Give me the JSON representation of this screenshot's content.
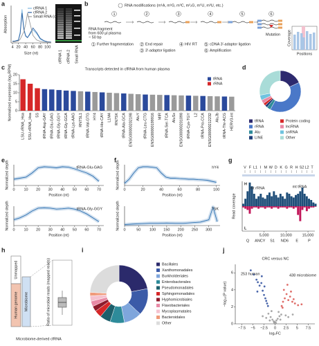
{
  "panels": [
    "a",
    "b",
    "c",
    "d",
    "e",
    "f",
    "g",
    "h",
    "i",
    "j"
  ],
  "gel": {
    "lanes": [
      "cfRNA 1",
      "cfRNA 2",
      "Small RNA"
    ]
  },
  "diagram": {
    "b": {
      "title": "RNA modifications (m¹A, m¹G, m³C, m²₂G, m⁵U, m³U, etc.)",
      "fragment": [
        "RNA fragment",
        "from 600 µl plasma",
        "~ 50 bp"
      ],
      "steps": [
        {
          "num": "1",
          "label": "Further fragmentation"
        },
        {
          "num": "2",
          "label": "End repair"
        },
        {
          "num": "3",
          "label": "3′-adaptor ligation"
        },
        {
          "num": "4",
          "label": "HIV RT"
        },
        {
          "num": "5",
          "label": "cDNA 3′-adaptor ligation"
        },
        {
          "num": "6",
          "label": "Amplification"
        }
      ],
      "mutation": "Mutation",
      "coverage": "Coverage",
      "positions": "Positions"
    },
    "h": {
      "unmapped": "Unmapped",
      "human": "Human genome",
      "microbiome": "Microbiome",
      "ratio": "Ratio of microbial reads (mapped reads)",
      "caption": "Microbiome-derived cfRNA"
    }
  },
  "chart_data": [
    {
      "type": "line",
      "xlabel": "Size (nt)",
      "ylabel": "Absorption",
      "x": [
        4,
        10,
        20,
        25,
        30,
        35,
        40,
        45,
        50,
        60,
        70,
        80,
        90,
        100,
        110
      ],
      "xlim": [
        0,
        110
      ],
      "xticks": [
        4,
        20,
        40,
        60,
        80,
        100
      ],
      "ylim": [
        0,
        100
      ],
      "legend": "upper right",
      "series": [
        {
          "name": "cfRNA 1",
          "color": "#7fb8e0",
          "values": [
            5,
            5,
            8,
            30,
            90,
            40,
            20,
            15,
            20,
            35,
            25,
            10,
            5,
            3,
            2
          ]
        },
        {
          "name": "cfRNA 2",
          "color": "#2c5fa0",
          "values": [
            4,
            5,
            7,
            25,
            80,
            35,
            18,
            14,
            22,
            40,
            28,
            12,
            6,
            3,
            2
          ]
        },
        {
          "name": "Small RNA (cytoplasm)",
          "color": "#9a9a9a",
          "values": [
            3,
            3,
            5,
            10,
            20,
            30,
            50,
            80,
            60,
            20,
            8,
            4,
            2,
            2,
            1
          ]
        }
      ]
    },
    {
      "type": "bar",
      "title": "Transcripts detected in cfRNA from human plasma",
      "ylabel": "Normalized expression (log₂RPM)",
      "categories": [
        "LSU-rRNA_Hsa",
        "SSU-rRNA_Hsa",
        "5S",
        "tRNA-Asp-GAY",
        "tRNA-Glu-GAG",
        "tRNA-Gly-GGY",
        "tRNA-Gly-GGA",
        "tRNA-Lys-AAG",
        "RN7SL1",
        "tRNA-Val-GTG",
        "HY4",
        "tRNA-His-CAY",
        "L1M4",
        "RN7SK",
        "tRNA-Ala-GCA",
        "ENSG00000202198",
        "AluY",
        "tRNA-Leu-CTG",
        "ENSG00000199916",
        "MIR",
        "tRNA-Ser-TCA",
        "AluSx",
        "ENSG00000201098",
        "tRNA-Cys-TGY",
        "L2",
        "tRNA-Pro-CCA",
        "ENSG00000212232",
        "AluJb",
        "tRNA-Thr-ACG",
        "HERV3-int"
      ],
      "ylim": [
        0,
        20
      ],
      "yticks": [
        0,
        5,
        10,
        15,
        20
      ],
      "legend": "upper right",
      "series": [
        {
          "name": "tRNA",
          "color": "#2b4a9c",
          "values": [
            null,
            null,
            null,
            12,
            11.8,
            11.5,
            11.2,
            11,
            null,
            10.6,
            null,
            10.2,
            null,
            null,
            9.6,
            null,
            null,
            9.0,
            null,
            null,
            8.7,
            null,
            null,
            8.4,
            null,
            8.2,
            null,
            null,
            7.9,
            null
          ]
        },
        {
          "name": "rRNA",
          "color": "#d62728",
          "values": [
            17.5,
            15,
            12.5,
            null,
            null,
            null,
            null,
            null,
            null,
            null,
            null,
            null,
            null,
            null,
            null,
            null,
            null,
            null,
            null,
            null,
            null,
            null,
            null,
            null,
            null,
            null,
            null,
            null,
            null,
            null
          ]
        },
        {
          "color": "#9a9a9a",
          "values": [
            null,
            null,
            null,
            null,
            null,
            null,
            null,
            null,
            10.8,
            null,
            10.4,
            null,
            10,
            9.8,
            null,
            9.4,
            9.2,
            null,
            8.9,
            8.8,
            null,
            8.6,
            8.5,
            null,
            8.3,
            null,
            8.1,
            8.0,
            null,
            7.8
          ]
        }
      ]
    },
    {
      "type": "pie",
      "categories": [
        "tRNA",
        "rRNA",
        "Alu",
        "LINE",
        "Protein coding",
        "lncRNA",
        "snRNA",
        "Other"
      ],
      "values": [
        18,
        40,
        3,
        2,
        2,
        3,
        4,
        28
      ],
      "colors": [
        "#2d2a6e",
        "#4a78c8",
        "#2e8b9a",
        "#1f3f7a",
        "#d62728",
        "#e98aa6",
        "#6fc3df",
        "#a9dcd8"
      ]
    },
    {
      "type": "line",
      "label": "tRNA-Glu-GAG",
      "xlabel": "Position (nt)",
      "ylabel": "Normalized depth",
      "x": [
        0,
        5,
        10,
        15,
        20,
        25,
        30,
        35,
        40,
        45,
        50,
        55,
        60,
        65,
        70
      ],
      "xlim": [
        0,
        74
      ],
      "xticks": [
        0,
        10,
        20,
        30,
        40,
        50,
        60,
        70
      ],
      "ylim": [
        0,
        1
      ],
      "series": [
        {
          "color": "#2a6fb0",
          "values": [
            0.3,
            0.35,
            0.4,
            0.6,
            0.85,
            0.9,
            0.88,
            0.85,
            0.9,
            0.88,
            0.8,
            0.7,
            0.6,
            0.45,
            0.2
          ]
        }
      ]
    },
    {
      "type": "line",
      "label": "tRNA-Gly-GGY",
      "xlabel": "Position (nt)",
      "ylabel": "Normalized depth",
      "x": [
        0,
        5,
        10,
        15,
        20,
        25,
        30,
        35,
        40,
        45,
        50,
        55,
        60,
        65,
        70
      ],
      "xlim": [
        0,
        74
      ],
      "xticks": [
        0,
        10,
        20,
        30,
        40,
        50,
        60,
        70
      ],
      "ylim": [
        0,
        1
      ],
      "series": [
        {
          "color": "#2a6fb0",
          "values": [
            0.3,
            0.4,
            0.55,
            0.75,
            0.9,
            0.92,
            0.9,
            0.85,
            0.87,
            0.9,
            0.85,
            0.75,
            0.6,
            0.4,
            0.2
          ]
        }
      ]
    },
    {
      "type": "line",
      "label": "hY4",
      "xlabel": "Position (nt)",
      "ylabel": "Normalized depth",
      "x": [
        0,
        5,
        10,
        15,
        20,
        25,
        30,
        35,
        40,
        45,
        50,
        55,
        60,
        65,
        70,
        75,
        80,
        85,
        90,
        95,
        100
      ],
      "xlim": [
        0,
        104
      ],
      "xticks": [
        0,
        20,
        40,
        60,
        80,
        100
      ],
      "ylim": [
        0,
        1
      ],
      "series": [
        {
          "color": "#2a6fb0",
          "values": [
            0.1,
            0.3,
            0.6,
            0.85,
            0.9,
            0.9,
            0.88,
            0.85,
            0.6,
            0.4,
            0.35,
            0.35,
            0.33,
            0.32,
            0.3,
            0.3,
            0.28,
            0.27,
            0.25,
            0.2,
            0.15
          ]
        }
      ]
    },
    {
      "type": "line",
      "label": "7SK",
      "xlabel": "Position (nt)",
      "ylabel": "Normalized depth",
      "x": [
        0,
        30,
        60,
        90,
        120,
        150,
        180,
        210,
        240,
        270,
        300,
        315,
        330
      ],
      "xlim": [
        0,
        340
      ],
      "xticks": [
        0,
        50,
        100,
        150,
        200,
        250,
        300
      ],
      "ylim": [
        0,
        1
      ],
      "series": [
        {
          "color": "#2a6fb0",
          "values": [
            0.05,
            0.08,
            0.1,
            0.12,
            0.12,
            0.13,
            0.12,
            0.12,
            0.15,
            0.18,
            0.3,
            0.95,
            0.2
          ]
        }
      ]
    },
    {
      "type": "area",
      "ylabel": "Read coverage",
      "annotations": [
        "mt rRNA",
        "mt tRNA"
      ],
      "genes_top": [
        "V",
        "F",
        "L1",
        "I",
        "M",
        "W",
        "D",
        "K",
        "G",
        "R",
        "H",
        "S2",
        "L2",
        "T"
      ],
      "genes_bottom": [
        "Q",
        "ANCY",
        "S1",
        "ND6",
        "E",
        "P"
      ],
      "x": [
        0,
        500,
        1000,
        1500,
        2000,
        2500,
        3000,
        3500,
        4000,
        4500,
        5000,
        5500,
        6000,
        6500,
        7000,
        7500,
        8000,
        8500,
        9000,
        9500,
        10000,
        10500,
        11000,
        11500,
        12000,
        12500,
        13000,
        13500,
        14000,
        14500,
        15000,
        15500,
        16000,
        16500
      ],
      "xlim": [
        0,
        16569
      ],
      "xticks": [
        {
          "value": 5000,
          "label": "5,000"
        },
        {
          "value": 10000,
          "label": "10,000"
        },
        {
          "value": 15000,
          "label": "15,000"
        }
      ],
      "ylim": [
        -1,
        1
      ],
      "series": [
        {
          "name": "H",
          "color": "#1f4e79",
          "values": [
            0.1,
            0.3,
            0.6,
            0.95,
            0.8,
            0.5,
            0.3,
            0.4,
            0.5,
            0.35,
            0.3,
            0.45,
            0.55,
            0.4,
            0.6,
            0.45,
            0.35,
            0.5,
            0.4,
            0.3,
            0.55,
            0.5,
            0.4,
            0.35,
            0.45,
            0.5,
            0.6,
            0.75,
            0.5,
            0.4,
            0.3,
            0.25,
            0.15,
            0.1
          ]
        },
        {
          "name": "L",
          "color": "#c2185b",
          "values": [
            -0.05,
            -0.1,
            -0.15,
            -0.3,
            -0.1,
            -0.05,
            -0.05,
            -0.1,
            -0.05,
            -0.05,
            -0.1,
            -0.05,
            -0.05,
            -0.1,
            -0.05,
            -0.05,
            -0.1,
            -0.05,
            -0.05,
            -0.05,
            -0.1,
            -0.05,
            -0.05,
            -0.1,
            -0.05,
            -0.35,
            -0.6,
            -0.15,
            -0.05,
            -0.2,
            -0.1,
            -0.05,
            -0.05,
            -0.02
          ]
        }
      ]
    },
    {
      "type": "pie",
      "categories": [
        "Bacillales",
        "Xanthomonadales",
        "Burkholderiales",
        "Enterobacterales",
        "Pseudomonadales",
        "Sphingomonadales",
        "Hyphomicrobiales",
        "Flavobacteriales",
        "Mycoplasmatales",
        "Bacteroidales",
        "Other"
      ],
      "values": [
        22,
        15,
        10,
        8,
        6,
        4,
        3,
        3,
        3,
        2,
        24
      ],
      "colors": [
        "#2b2a6b",
        "#3b5ba8",
        "#7fa6dc",
        "#2e8b9a",
        "#1d5f6b",
        "#d62728",
        "#8e1b2c",
        "#e98aa6",
        "#f5c2cf",
        "#f09a7a",
        "#dcdcdc"
      ]
    },
    {
      "type": "scatter",
      "title": "CRC versus NC",
      "xlabel": "log₂FC",
      "ylabel": "−log₁₀(P value)",
      "xlim": [
        -9,
        9
      ],
      "xticks": [
        {
          "value": -7.5,
          "label": "−7.5"
        },
        {
          "value": -5,
          "label": "−5"
        },
        {
          "value": -2.5,
          "label": "−2.5"
        },
        0,
        2.5,
        5,
        7.5
      ],
      "ylim": [
        0,
        7
      ],
      "yticks": [
        0,
        2,
        4,
        6
      ],
      "annotations": [
        {
          "text": "253 human",
          "color": "#2c4c9c"
        },
        {
          "text": "438 microbiome",
          "color": "#d9534f"
        }
      ],
      "series": [
        {
          "color": "#2c4c9c",
          "x": [
            -5.5,
            -4.8,
            -4.2,
            -3.9,
            -3.5,
            -3.1,
            -2.8,
            -2.5,
            -2.2,
            -2,
            -1.8,
            -1.6,
            -3,
            -4,
            -2.4
          ],
          "y": [
            6.3,
            5.8,
            5.2,
            4.9,
            4.5,
            4.8,
            3.9,
            3.4,
            3,
            2.7,
            2.4,
            2.1,
            5.6,
            3.8,
            4.4
          ]
        },
        {
          "color": "#d9534f",
          "x": [
            1.5,
            1.8,
            2.2,
            2.6,
            3,
            3.4,
            3.9,
            4.5,
            5.2,
            2,
            2.8,
            3.6,
            4.2,
            6,
            1.7
          ],
          "y": [
            2.1,
            2.6,
            3,
            3.5,
            2.8,
            3.2,
            2.6,
            2.4,
            2.2,
            4,
            4.6,
            3.8,
            2.9,
            2.3,
            1.9
          ]
        },
        {
          "color": "#9a9a9a",
          "x": [
            -1.5,
            -1,
            -0.6,
            -0.3,
            0,
            0.3,
            0.6,
            1,
            1.4,
            -2,
            -2.8,
            2.4,
            3,
            -0.8,
            0.8,
            0.2,
            -0.2,
            1.2,
            -1.2,
            4
          ],
          "y": [
            1.2,
            0.8,
            0.5,
            0.3,
            0.2,
            0.4,
            0.6,
            0.9,
            1.1,
            0.7,
            0.9,
            1,
            0.8,
            1.5,
            1.4,
            0.1,
            0.15,
            0.5,
            0.4,
            1.1
          ]
        }
      ]
    }
  ]
}
